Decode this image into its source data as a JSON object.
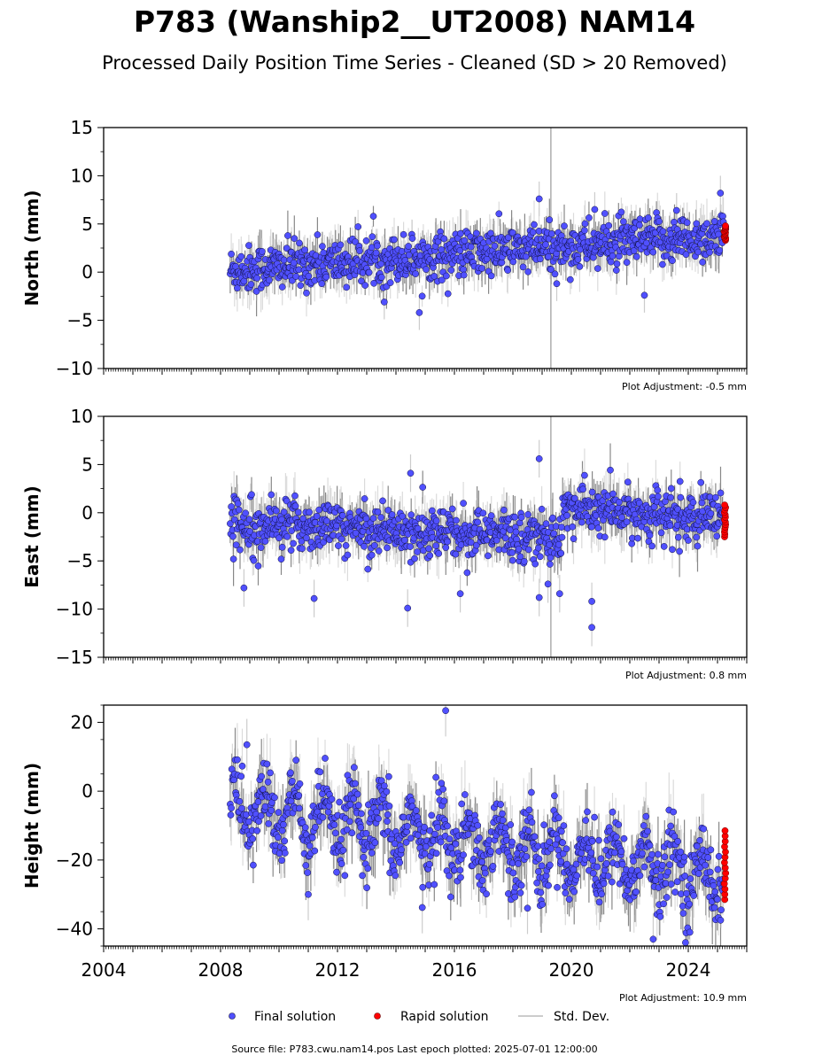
{
  "title": "P783 (Wanship2__UT2008) NAM14",
  "subtitle": "Processed Daily Position Time Series - Cleaned (SD > 20 Removed)",
  "legend": {
    "final": "Final solution",
    "rapid": "Rapid solution",
    "std": "Std. Dev."
  },
  "source": "Source file: P783.cwu.nam14.pos  Last epoch plotted: 2025-07-01 12:00:00",
  "colors": {
    "final": "#5050ff",
    "rapid": "#ff0000",
    "std": "#cccccc",
    "edge": "#101040"
  },
  "chart_data": {
    "type": "scatter",
    "x_range": [
      2004,
      2026
    ],
    "x_ticks": [
      2004,
      2008,
      2012,
      2016,
      2020,
      2024
    ],
    "x_tick_labels": [
      "2004",
      "2008",
      "2012",
      "2016",
      "2020",
      "2024"
    ],
    "data_start": 2008.33,
    "data_end": 2025.5,
    "final_end": 2025.2,
    "panels": [
      {
        "ylabel": "North (mm)",
        "ylim": [
          -10,
          15
        ],
        "yticks": [
          -10,
          -5,
          0,
          5,
          10,
          15
        ],
        "ytick_labels": [
          "−10",
          "−5",
          "0",
          "5",
          "10",
          "15"
        ],
        "adjustment": "Plot Adjustment: -0.5 mm",
        "trend": [
          [
            2008.33,
            0.2
          ],
          [
            2025.5,
            3.8
          ]
        ],
        "noise_sd": 1.2,
        "step": null,
        "rapid_range": [
          3.3,
          4.8
        ],
        "outliers": [
          [
            2018.9,
            7.6
          ],
          [
            2025.1,
            8.2
          ],
          [
            2014.8,
            -4.2
          ],
          [
            2013.6,
            -3.1
          ],
          [
            2019.5,
            -1.2
          ],
          [
            2022.5,
            -2.4
          ],
          [
            2020.8,
            6.5
          ],
          [
            2023.6,
            6.4
          ]
        ]
      },
      {
        "ylabel": "East (mm)",
        "ylim": [
          -15,
          10
        ],
        "yticks": [
          -15,
          -10,
          -5,
          0,
          5,
          10
        ],
        "ytick_labels": [
          "−15",
          "−10",
          "−5",
          "0",
          "5",
          "10"
        ],
        "adjustment": "Plot Adjustment: 0.8 mm",
        "trend": [
          [
            2008.33,
            -1.0
          ],
          [
            2019.7,
            -2.6
          ]
        ],
        "noise_sd": 1.3,
        "step": {
          "at": 2019.7,
          "trend": [
            [
              2019.7,
              0.5
            ],
            [
              2025.5,
              -1.0
            ]
          ]
        },
        "rapid_range": [
          -2.5,
          0.8
        ],
        "outliers": [
          [
            2018.9,
            5.6
          ],
          [
            2014.5,
            4.1
          ],
          [
            2020.7,
            -9.2
          ],
          [
            2020.7,
            -11.9
          ],
          [
            2014.4,
            -9.9
          ],
          [
            2008.8,
            -7.8
          ],
          [
            2011.2,
            -8.9
          ],
          [
            2018.9,
            -8.8
          ],
          [
            2019.6,
            -8.4
          ],
          [
            2016.2,
            -8.4
          ],
          [
            2019.2,
            -7.4
          ]
        ]
      },
      {
        "ylabel": "Height (mm)",
        "ylim": [
          -45,
          25
        ],
        "yticks": [
          -40,
          -20,
          0,
          20
        ],
        "ytick_labels": [
          "−40",
          "−20",
          "0",
          "20"
        ],
        "adjustment": "Plot Adjustment: 10.9 mm",
        "trend": [
          [
            2008.33,
            -5.0
          ],
          [
            2025.5,
            -25.0
          ]
        ],
        "noise_sd": 5.0,
        "seasonal_amp": 7.0,
        "step": null,
        "rapid_range": [
          -31.5,
          -11.5
        ],
        "outliers": [
          [
            2015.7,
            23.4
          ],
          [
            2014.9,
            -33.8
          ],
          [
            2022.8,
            -43.0
          ],
          [
            2011.0,
            -30.0
          ],
          [
            2018.5,
            -34.0
          ],
          [
            2008.9,
            13.5
          ]
        ]
      }
    ]
  }
}
